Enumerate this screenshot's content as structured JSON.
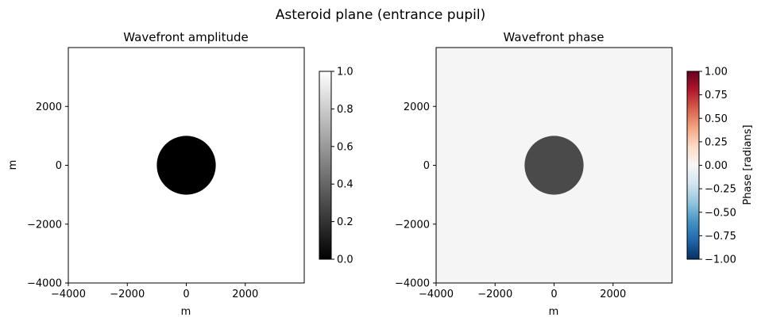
{
  "figure": {
    "suptitle": "Asteroid plane (entrance pupil)"
  },
  "chart_data": [
    {
      "type": "heatmap",
      "title": "Wavefront amplitude",
      "xlabel": "m",
      "ylabel": "m",
      "xlim": [
        -4000,
        4000
      ],
      "ylim": [
        -4000,
        4000
      ],
      "xticks": [
        -4000,
        -2000,
        0,
        2000
      ],
      "yticks": [
        -4000,
        -2000,
        0,
        2000
      ],
      "background_value": 1.0,
      "disk": {
        "center": [
          0,
          0
        ],
        "radius": 1000,
        "value": 0.0
      },
      "colormap": "gray",
      "colorbar": {
        "label": "",
        "range": [
          0,
          1
        ],
        "ticks": [
          "0.0",
          "0.2",
          "0.4",
          "0.6",
          "0.8",
          "1.0"
        ]
      },
      "grid": false
    },
    {
      "type": "heatmap",
      "title": "Wavefront phase",
      "xlabel": "m",
      "ylabel": "",
      "xlim": [
        -4000,
        4000
      ],
      "ylim": [
        -4000,
        4000
      ],
      "xticks": [
        -4000,
        -2000,
        0,
        2000
      ],
      "yticks": [
        -4000,
        -2000,
        0,
        2000
      ],
      "background_value": 0.0,
      "disk": {
        "center": [
          0,
          0
        ],
        "radius": 1000,
        "color": "#4a4a4a"
      },
      "colormap": "RdBu_r",
      "colorbar": {
        "label": "Phase [radians]",
        "range": [
          -1,
          1
        ],
        "ticks": [
          "−1.00",
          "−0.75",
          "−0.50",
          "−0.25",
          "0.00",
          "0.25",
          "0.50",
          "0.75",
          "1.00"
        ]
      },
      "grid": false
    }
  ]
}
